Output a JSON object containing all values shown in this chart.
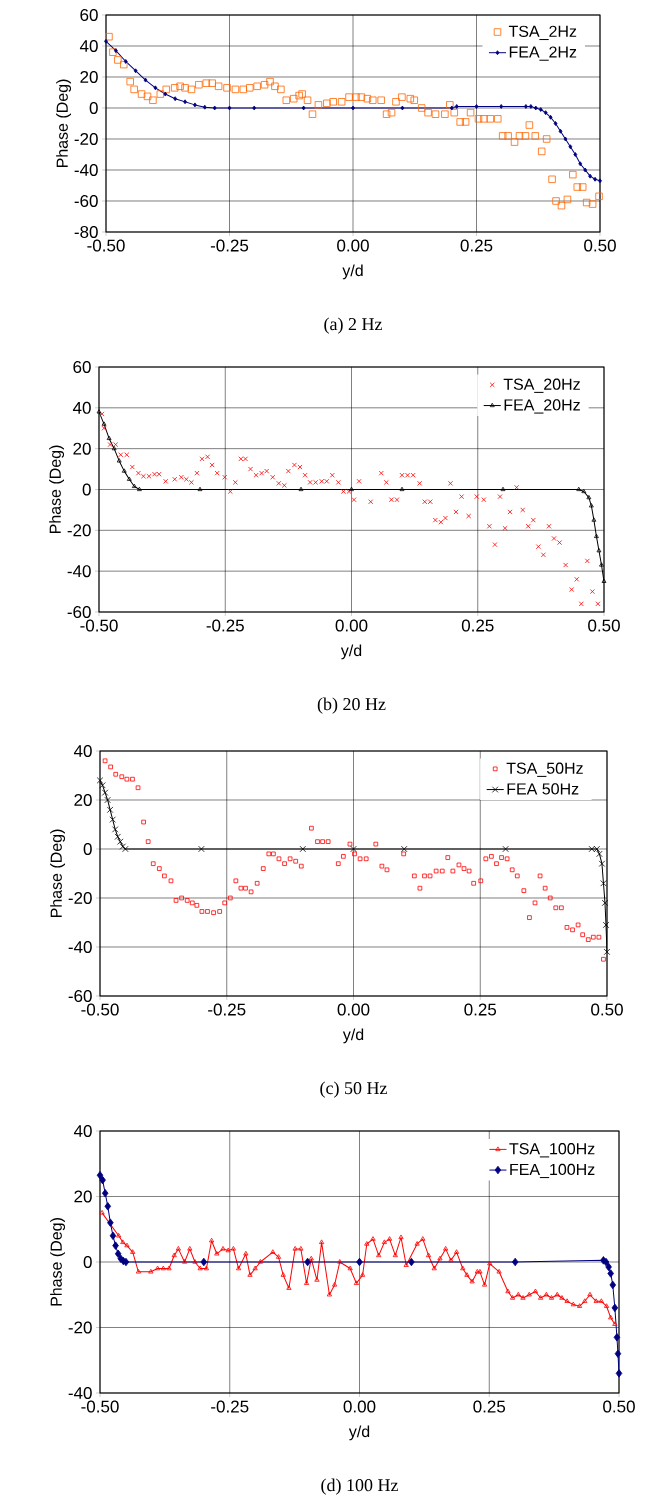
{
  "chart_data": [
    {
      "type": "line",
      "title": "(a) 2 Hz",
      "xlabel": "y/d",
      "ylabel": "Phase (Deg)",
      "xlim": [
        -0.5,
        0.5
      ],
      "ylim": [
        -80,
        60
      ],
      "xticks": [
        {
          "value": -0.5,
          "label": "-0.50"
        },
        {
          "value": -0.25,
          "label": "-0.25"
        },
        {
          "value": 0,
          "label": "0.00"
        },
        {
          "value": 0.25,
          "label": "0.25"
        },
        {
          "value": 0.5,
          "label": "0.50"
        }
      ],
      "yticks": [
        -80,
        -60,
        -40,
        -20,
        0,
        20,
        40,
        60
      ],
      "grid": true,
      "legend": "top right",
      "series": [
        {
          "name": "TSA_2Hz",
          "type": "scatter",
          "marker": "square",
          "color": "#ff6600",
          "x": [
            -0.494,
            -0.486,
            -0.476,
            -0.464,
            -0.451,
            -0.443,
            -0.428,
            -0.416,
            -0.405,
            -0.39,
            -0.378,
            -0.361,
            -0.35,
            -0.34,
            -0.327,
            -0.312,
            -0.297,
            -0.285,
            -0.272,
            -0.255,
            -0.238,
            -0.222,
            -0.209,
            -0.194,
            -0.179,
            -0.168,
            -0.158,
            -0.146,
            -0.135,
            -0.12,
            -0.109,
            -0.103,
            -0.092,
            -0.082,
            -0.07,
            -0.053,
            -0.04,
            -0.023,
            -0.008,
            0.006,
            0.017,
            0.029,
            0.04,
            0.057,
            0.068,
            0.078,
            0.087,
            0.099,
            0.116,
            0.124,
            0.139,
            0.152,
            0.167,
            0.186,
            0.196,
            0.205,
            0.217,
            0.228,
            0.238,
            0.254,
            0.265,
            0.278,
            0.293,
            0.303,
            0.314,
            0.327,
            0.337,
            0.349,
            0.357,
            0.369,
            0.382,
            0.392,
            0.403,
            0.411,
            0.422,
            0.434,
            0.445,
            0.454,
            0.465,
            0.473,
            0.485,
            0.498
          ],
          "values": [
            46,
            36,
            31,
            28,
            17,
            12,
            9,
            7.5,
            5,
            9,
            12,
            13,
            14,
            13,
            12,
            15,
            16,
            16,
            14,
            13,
            12,
            12,
            13,
            14,
            15,
            17,
            14,
            12,
            5,
            6,
            8,
            9,
            5,
            -4,
            2,
            3,
            4,
            4,
            7,
            7,
            7,
            6,
            5,
            5,
            -4,
            -3,
            4,
            7,
            6,
            5,
            0,
            -3,
            -4,
            -4,
            2,
            -3,
            -9,
            -9,
            -3,
            -7,
            -7,
            -7,
            -7,
            -18,
            -18,
            -22,
            -18,
            -18,
            -11,
            -18,
            -28,
            -20,
            -46,
            -60,
            -63,
            -59,
            -43,
            -51,
            -51,
            -61,
            -62,
            -57
          ]
        },
        {
          "name": "FEA_2Hz",
          "type": "line",
          "marker": "diamond",
          "color": "#000080",
          "x": [
            -0.5,
            -0.48,
            -0.46,
            -0.44,
            -0.42,
            -0.4,
            -0.38,
            -0.36,
            -0.34,
            -0.32,
            -0.3,
            -0.28,
            -0.25,
            -0.2,
            -0.1,
            0,
            0.1,
            0.2,
            0.21,
            0.25,
            0.3,
            0.35,
            0.36,
            0.37,
            0.38,
            0.39,
            0.4,
            0.41,
            0.42,
            0.43,
            0.44,
            0.45,
            0.46,
            0.47,
            0.48,
            0.49,
            0.5
          ],
          "values": [
            43,
            37,
            30,
            24,
            18,
            13,
            9,
            6,
            4,
            2,
            0.5,
            0,
            0,
            0,
            0,
            0,
            0,
            0,
            1,
            1,
            1,
            1,
            1,
            0,
            -1,
            -3,
            -6,
            -10,
            -15,
            -20,
            -25,
            -30,
            -36,
            -40,
            -44,
            -46,
            -47
          ]
        }
      ]
    },
    {
      "type": "line",
      "title": "(b) 20 Hz",
      "xlabel": "y/d",
      "ylabel": "Phase (Deg)",
      "xlim": [
        -0.5,
        0.5
      ],
      "ylim": [
        -60,
        60
      ],
      "xticks": [
        {
          "value": -0.5,
          "label": "-0.50"
        },
        {
          "value": -0.25,
          "label": "-0.25"
        },
        {
          "value": 0,
          "label": "0.00"
        },
        {
          "value": 0.25,
          "label": "0.25"
        },
        {
          "value": 0.5,
          "label": "0.50"
        }
      ],
      "yticks": [
        -60,
        -40,
        -20,
        0,
        20,
        40,
        60
      ],
      "grid": true,
      "legend": "top right",
      "series": [
        {
          "name": "TSA_20Hz",
          "type": "scatter",
          "marker": "cross",
          "color": "#ff0000",
          "x": [
            -0.494,
            -0.49,
            -0.478,
            -0.467,
            -0.457,
            -0.445,
            -0.434,
            -0.422,
            -0.412,
            -0.401,
            -0.39,
            -0.381,
            -0.368,
            -0.35,
            -0.337,
            -0.327,
            -0.317,
            -0.306,
            -0.296,
            -0.285,
            -0.276,
            -0.266,
            -0.251,
            -0.24,
            -0.23,
            -0.219,
            -0.21,
            -0.2,
            -0.189,
            -0.178,
            -0.168,
            -0.156,
            -0.144,
            -0.133,
            -0.125,
            -0.113,
            -0.102,
            -0.092,
            -0.082,
            -0.071,
            -0.059,
            -0.049,
            -0.038,
            -0.026,
            -0.016,
            -0.005,
            0.005,
            0.015,
            0.038,
            0.059,
            0.069,
            0.079,
            0.09,
            0.1,
            0.111,
            0.122,
            0.135,
            0.145,
            0.156,
            0.166,
            0.177,
            0.186,
            0.196,
            0.207,
            0.218,
            0.232,
            0.248,
            0.262,
            0.273,
            0.284,
            0.294,
            0.304,
            0.314,
            0.327,
            0.339,
            0.35,
            0.36,
            0.37,
            0.38,
            0.391,
            0.401,
            0.412,
            0.424,
            0.436,
            0.446,
            0.455,
            0.467,
            0.477,
            0.488
          ],
          "values": [
            37,
            30,
            22,
            22,
            17,
            17,
            11,
            8,
            6.5,
            6.5,
            7.5,
            7.5,
            4,
            5,
            6,
            5,
            3.5,
            8,
            15,
            16,
            12,
            8,
            6,
            -1,
            3.5,
            15,
            15,
            10,
            7,
            8,
            9,
            6,
            3,
            2,
            9,
            12,
            11,
            7,
            3.5,
            3.5,
            4,
            4,
            7,
            3.5,
            -1,
            -1,
            -5,
            4,
            -6,
            8,
            3.5,
            -5,
            -5,
            7,
            7,
            7,
            3,
            -6,
            -6,
            -15,
            -16,
            -14,
            3,
            -11,
            -3.5,
            -13,
            -3.5,
            -5,
            -18,
            -27,
            -3.5,
            -19,
            -11,
            1,
            -10,
            -18,
            -15,
            -28,
            -32,
            -18,
            -24,
            -26,
            -37,
            -49,
            -44,
            -56,
            -35,
            -50,
            -56
          ]
        },
        {
          "name": "FEA_20Hz",
          "type": "line",
          "marker": "triangle",
          "color": "#000000",
          "x": [
            -0.5,
            -0.49,
            -0.48,
            -0.47,
            -0.46,
            -0.45,
            -0.44,
            -0.43,
            -0.42,
            -0.3,
            -0.1,
            0,
            0.1,
            0.3,
            0.45,
            0.46,
            0.47,
            0.475,
            0.48,
            0.485,
            0.49,
            0.495,
            0.5
          ],
          "values": [
            38,
            32,
            25,
            20,
            14,
            9,
            5,
            1.5,
            0,
            0,
            0,
            0,
            0,
            0,
            0,
            -1,
            -4,
            -8,
            -15,
            -23,
            -30,
            -37,
            -45
          ]
        }
      ]
    },
    {
      "type": "line",
      "title": "(c) 50 Hz",
      "xlabel": "y/d",
      "ylabel": "Phase (Deg)",
      "xlim": [
        -0.5,
        0.5
      ],
      "ylim": [
        -60,
        40
      ],
      "xticks": [
        {
          "value": -0.5,
          "label": "-0.50"
        },
        {
          "value": -0.25,
          "label": "-0.25"
        },
        {
          "value": 0,
          "label": "0.00"
        },
        {
          "value": 0.25,
          "label": "0.25"
        },
        {
          "value": 0.5,
          "label": "0.50"
        }
      ],
      "yticks": [
        -60,
        -40,
        -20,
        0,
        20,
        40
      ],
      "grid": true,
      "legend": "top right",
      "series": [
        {
          "name": "TSA_50Hz",
          "type": "scatter",
          "marker": "square",
          "color": "#ff0000",
          "x": [
            -0.49,
            -0.479,
            -0.469,
            -0.457,
            -0.447,
            -0.436,
            -0.425,
            -0.414,
            -0.405,
            -0.395,
            -0.383,
            -0.373,
            -0.36,
            -0.35,
            -0.339,
            -0.328,
            -0.318,
            -0.309,
            -0.299,
            -0.288,
            -0.276,
            -0.264,
            -0.254,
            -0.243,
            -0.232,
            -0.222,
            -0.213,
            -0.202,
            -0.19,
            -0.178,
            -0.167,
            -0.158,
            -0.147,
            -0.136,
            -0.125,
            -0.114,
            -0.103,
            -0.083,
            -0.071,
            -0.061,
            -0.05,
            -0.03,
            -0.02,
            -0.007,
            0.002,
            0.013,
            0.025,
            0.044,
            0.056,
            0.066,
            0.099,
            0.12,
            0.131,
            0.14,
            0.151,
            0.163,
            0.175,
            0.186,
            0.196,
            0.208,
            0.218,
            0.228,
            0.237,
            0.251,
            0.261,
            0.272,
            0.282,
            0.292,
            0.303,
            0.313,
            0.323,
            0.336,
            0.347,
            0.358,
            0.368,
            0.378,
            0.388,
            0.399,
            0.41,
            0.421,
            0.432,
            0.443,
            0.452,
            0.463,
            0.473,
            0.484,
            0.493
          ],
          "values": [
            36,
            33.5,
            30.5,
            29.5,
            28.5,
            28.5,
            25,
            11,
            3,
            -6,
            -8,
            -11,
            -13,
            -21,
            -20,
            -21,
            -22,
            -23,
            -25.5,
            -25.5,
            -26,
            -25.5,
            -22,
            -20,
            -13,
            -16,
            -16,
            -17.5,
            -14,
            -8,
            -2,
            -2,
            -4,
            -6,
            -4,
            -5,
            -7,
            8.5,
            3,
            3,
            3,
            -6,
            -3,
            2,
            -2,
            -4,
            -4,
            2,
            -7,
            -8.5,
            -2,
            -11,
            -16,
            -11,
            -11,
            -9,
            -9,
            -3.5,
            -9,
            -6.5,
            -8,
            -9,
            -14,
            -13,
            -4,
            -3,
            -6,
            -3.5,
            -4,
            -8.5,
            -11,
            -17,
            -28,
            -22,
            -11,
            -16,
            -20,
            -24,
            -24,
            -32,
            -33,
            -31,
            -35,
            -37,
            -36,
            -36,
            -45
          ]
        },
        {
          "name": "FEA 50Hz",
          "type": "line",
          "marker": "cross",
          "color": "#000000",
          "x": [
            -0.5,
            -0.495,
            -0.49,
            -0.485,
            -0.48,
            -0.475,
            -0.47,
            -0.465,
            -0.46,
            -0.455,
            -0.45,
            -0.3,
            -0.1,
            0,
            0.1,
            0.3,
            0.47,
            0.48,
            0.485,
            0.49,
            0.493,
            0.496,
            0.498,
            0.5
          ],
          "values": [
            28,
            26,
            23,
            20,
            16,
            12,
            8,
            5,
            3,
            1,
            0,
            0,
            0,
            0,
            0,
            0,
            0,
            0,
            -2,
            -6,
            -14,
            -22,
            -31,
            -42
          ]
        }
      ]
    },
    {
      "type": "line",
      "title": "(d) 100 Hz",
      "xlabel": "y/d",
      "ylabel": "Phase (Deg)",
      "xlim": [
        -0.5,
        0.5
      ],
      "ylim": [
        -40,
        40
      ],
      "xticks": [
        {
          "value": -0.5,
          "label": "-0.50"
        },
        {
          "value": -0.25,
          "label": "-0.25"
        },
        {
          "value": 0,
          "label": "0.00"
        },
        {
          "value": 0.25,
          "label": "0.25"
        },
        {
          "value": 0.5,
          "label": "0.50"
        }
      ],
      "yticks": [
        -40,
        -20,
        0,
        20,
        40
      ],
      "grid": true,
      "legend": "top right",
      "series": [
        {
          "name": "TSA_100Hz",
          "type": "line",
          "marker": "triangle",
          "color": "#ff0000",
          "x": [
            -0.496,
            -0.464,
            -0.456,
            -0.448,
            -0.437,
            -0.426,
            -0.402,
            -0.389,
            -0.378,
            -0.367,
            -0.357,
            -0.349,
            -0.337,
            -0.327,
            -0.317,
            -0.307,
            -0.295,
            -0.285,
            -0.275,
            -0.263,
            -0.253,
            -0.243,
            -0.233,
            -0.219,
            -0.211,
            -0.201,
            -0.191,
            -0.167,
            -0.156,
            -0.147,
            -0.136,
            -0.124,
            -0.113,
            -0.102,
            -0.093,
            -0.082,
            -0.073,
            -0.058,
            -0.048,
            -0.038,
            -0.018,
            -0.006,
            0.006,
            0.014,
            0.026,
            0.037,
            0.048,
            0.058,
            0.069,
            0.08,
            0.09,
            0.111,
            0.122,
            0.133,
            0.144,
            0.155,
            0.166,
            0.176,
            0.187,
            0.199,
            0.207,
            0.217,
            0.227,
            0.232,
            0.241,
            0.251,
            0.269,
            0.286,
            0.295,
            0.306,
            0.315,
            0.327,
            0.339,
            0.349,
            0.36,
            0.37,
            0.381,
            0.39,
            0.4,
            0.412,
            0.424,
            0.434,
            0.444,
            0.456,
            0.466,
            0.476,
            0.484,
            0.492
          ],
          "values": [
            15,
            8,
            6,
            5,
            3,
            -3,
            -3,
            -2,
            -2,
            -2,
            2,
            4,
            0,
            4,
            0,
            -2,
            -2,
            6.5,
            2.5,
            4,
            3.5,
            4,
            -2,
            2.5,
            -4,
            -2,
            0,
            3,
            1.5,
            -4,
            -8,
            4,
            4,
            -6.5,
            1,
            -5.5,
            6,
            -10,
            -7,
            0,
            -2,
            -6.5,
            -4,
            5.5,
            7,
            2,
            6,
            7,
            2,
            7.5,
            -1,
            5.5,
            7,
            2,
            -2,
            1,
            4,
            0.5,
            3,
            -2,
            -4,
            -6,
            -3,
            -3,
            -7,
            -0.5,
            -3,
            -9,
            -11,
            -10,
            -11,
            -10,
            -9,
            -11,
            -10,
            -11,
            -10,
            -11,
            -12,
            -13,
            -13.5,
            -12,
            -10,
            -12,
            -12,
            -13.5,
            -17,
            -19
          ]
        },
        {
          "name": "FEA_100Hz",
          "type": "line",
          "marker": "diamond",
          "color": "#000080",
          "x": [
            -0.5,
            -0.495,
            -0.49,
            -0.485,
            -0.48,
            -0.475,
            -0.47,
            -0.465,
            -0.46,
            -0.455,
            -0.45,
            -0.3,
            -0.1,
            0,
            0.1,
            0.3,
            0.47,
            0.475,
            0.48,
            0.484,
            0.488,
            0.492,
            0.496,
            0.498,
            0.5
          ],
          "values": [
            26.5,
            25,
            21,
            17,
            12,
            8,
            5,
            2.5,
            1,
            0.3,
            0,
            0,
            0,
            0,
            0,
            0,
            0.5,
            0,
            -1.5,
            -3.5,
            -7,
            -14,
            -23,
            -28,
            -34
          ]
        }
      ]
    }
  ]
}
